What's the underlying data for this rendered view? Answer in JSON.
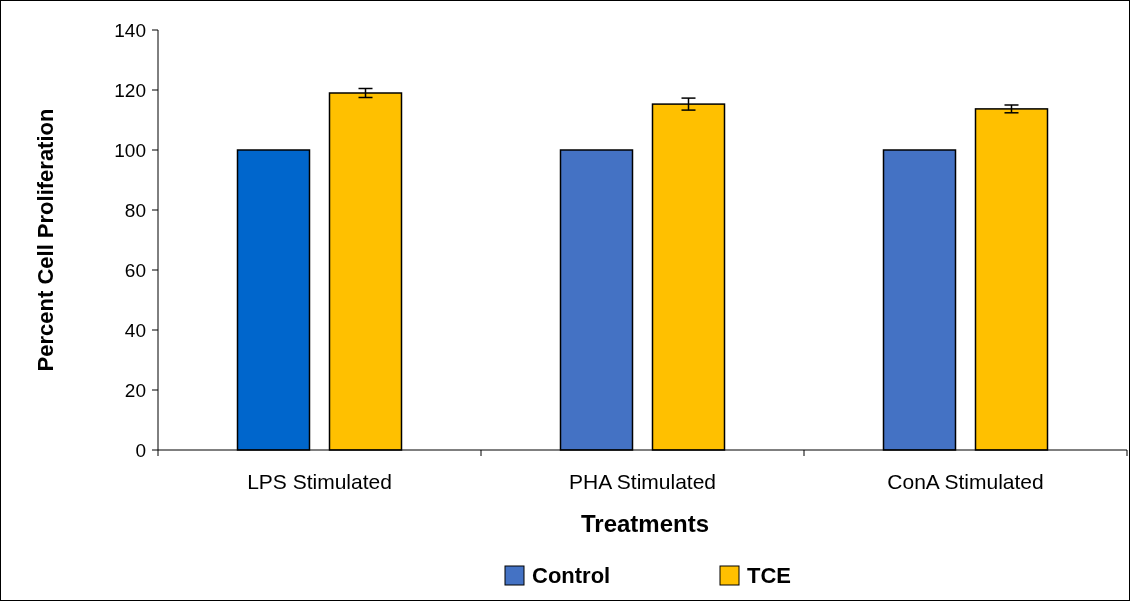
{
  "chart_data": {
    "type": "bar",
    "xlabel": "Treatments",
    "ylabel": "Percent Cell Proliferation",
    "categories": [
      "LPS Stimulated",
      "PHA Stimulated",
      "ConA Stimulated"
    ],
    "series": [
      {
        "name": "Control",
        "color": "#4472c4",
        "colors": [
          "#0066cc",
          "#4472c4",
          "#4472c4"
        ],
        "values": [
          100,
          100,
          100
        ]
      },
      {
        "name": "TCE",
        "color": "#ffc000",
        "values": [
          119,
          115.3,
          113.7
        ],
        "errors": [
          1.5,
          2,
          1.3
        ]
      }
    ],
    "ylim": [
      0,
      140
    ],
    "yticks": [
      0,
      20,
      40,
      60,
      80,
      100,
      120,
      140
    ],
    "grid": false,
    "legend": "bottom"
  }
}
